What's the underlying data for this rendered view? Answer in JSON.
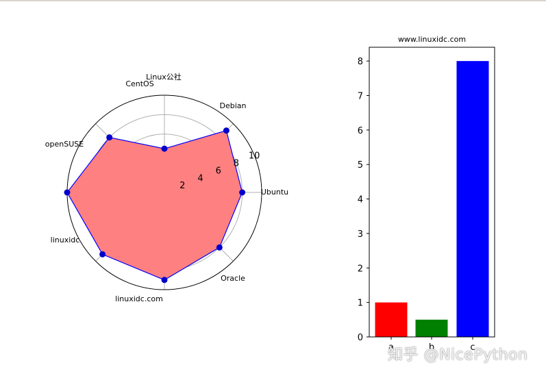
{
  "chart_data": [
    {
      "type": "radar",
      "title": "",
      "categories": [
        "Ubuntu",
        "Debian",
        "Linux公社",
        "CentOS",
        "openSUSE",
        "linuxidc",
        "linuxidc.com",
        "Oracle"
      ],
      "values": [
        8,
        9,
        4.5,
        8,
        10,
        9,
        9,
        8
      ],
      "radial_ticks": [
        "2",
        "4",
        "6",
        "8",
        "10"
      ],
      "rmax": 10,
      "fill_color": "#ff8080",
      "line_color": "#0000ff",
      "marker_color": "#0000cc",
      "grid": true
    },
    {
      "type": "bar",
      "title": "www.linuxidc.com",
      "categories": [
        "a",
        "b",
        "c"
      ],
      "values": [
        1,
        0.5,
        8
      ],
      "colors": [
        "#ff0000",
        "#008000",
        "#0000ff"
      ],
      "ylim": [
        0,
        8.4
      ],
      "yticks": [
        "0",
        "1",
        "2",
        "3",
        "4",
        "5",
        "6",
        "7",
        "8"
      ],
      "grid": false
    }
  ],
  "watermark": "知乎 @NicePython"
}
